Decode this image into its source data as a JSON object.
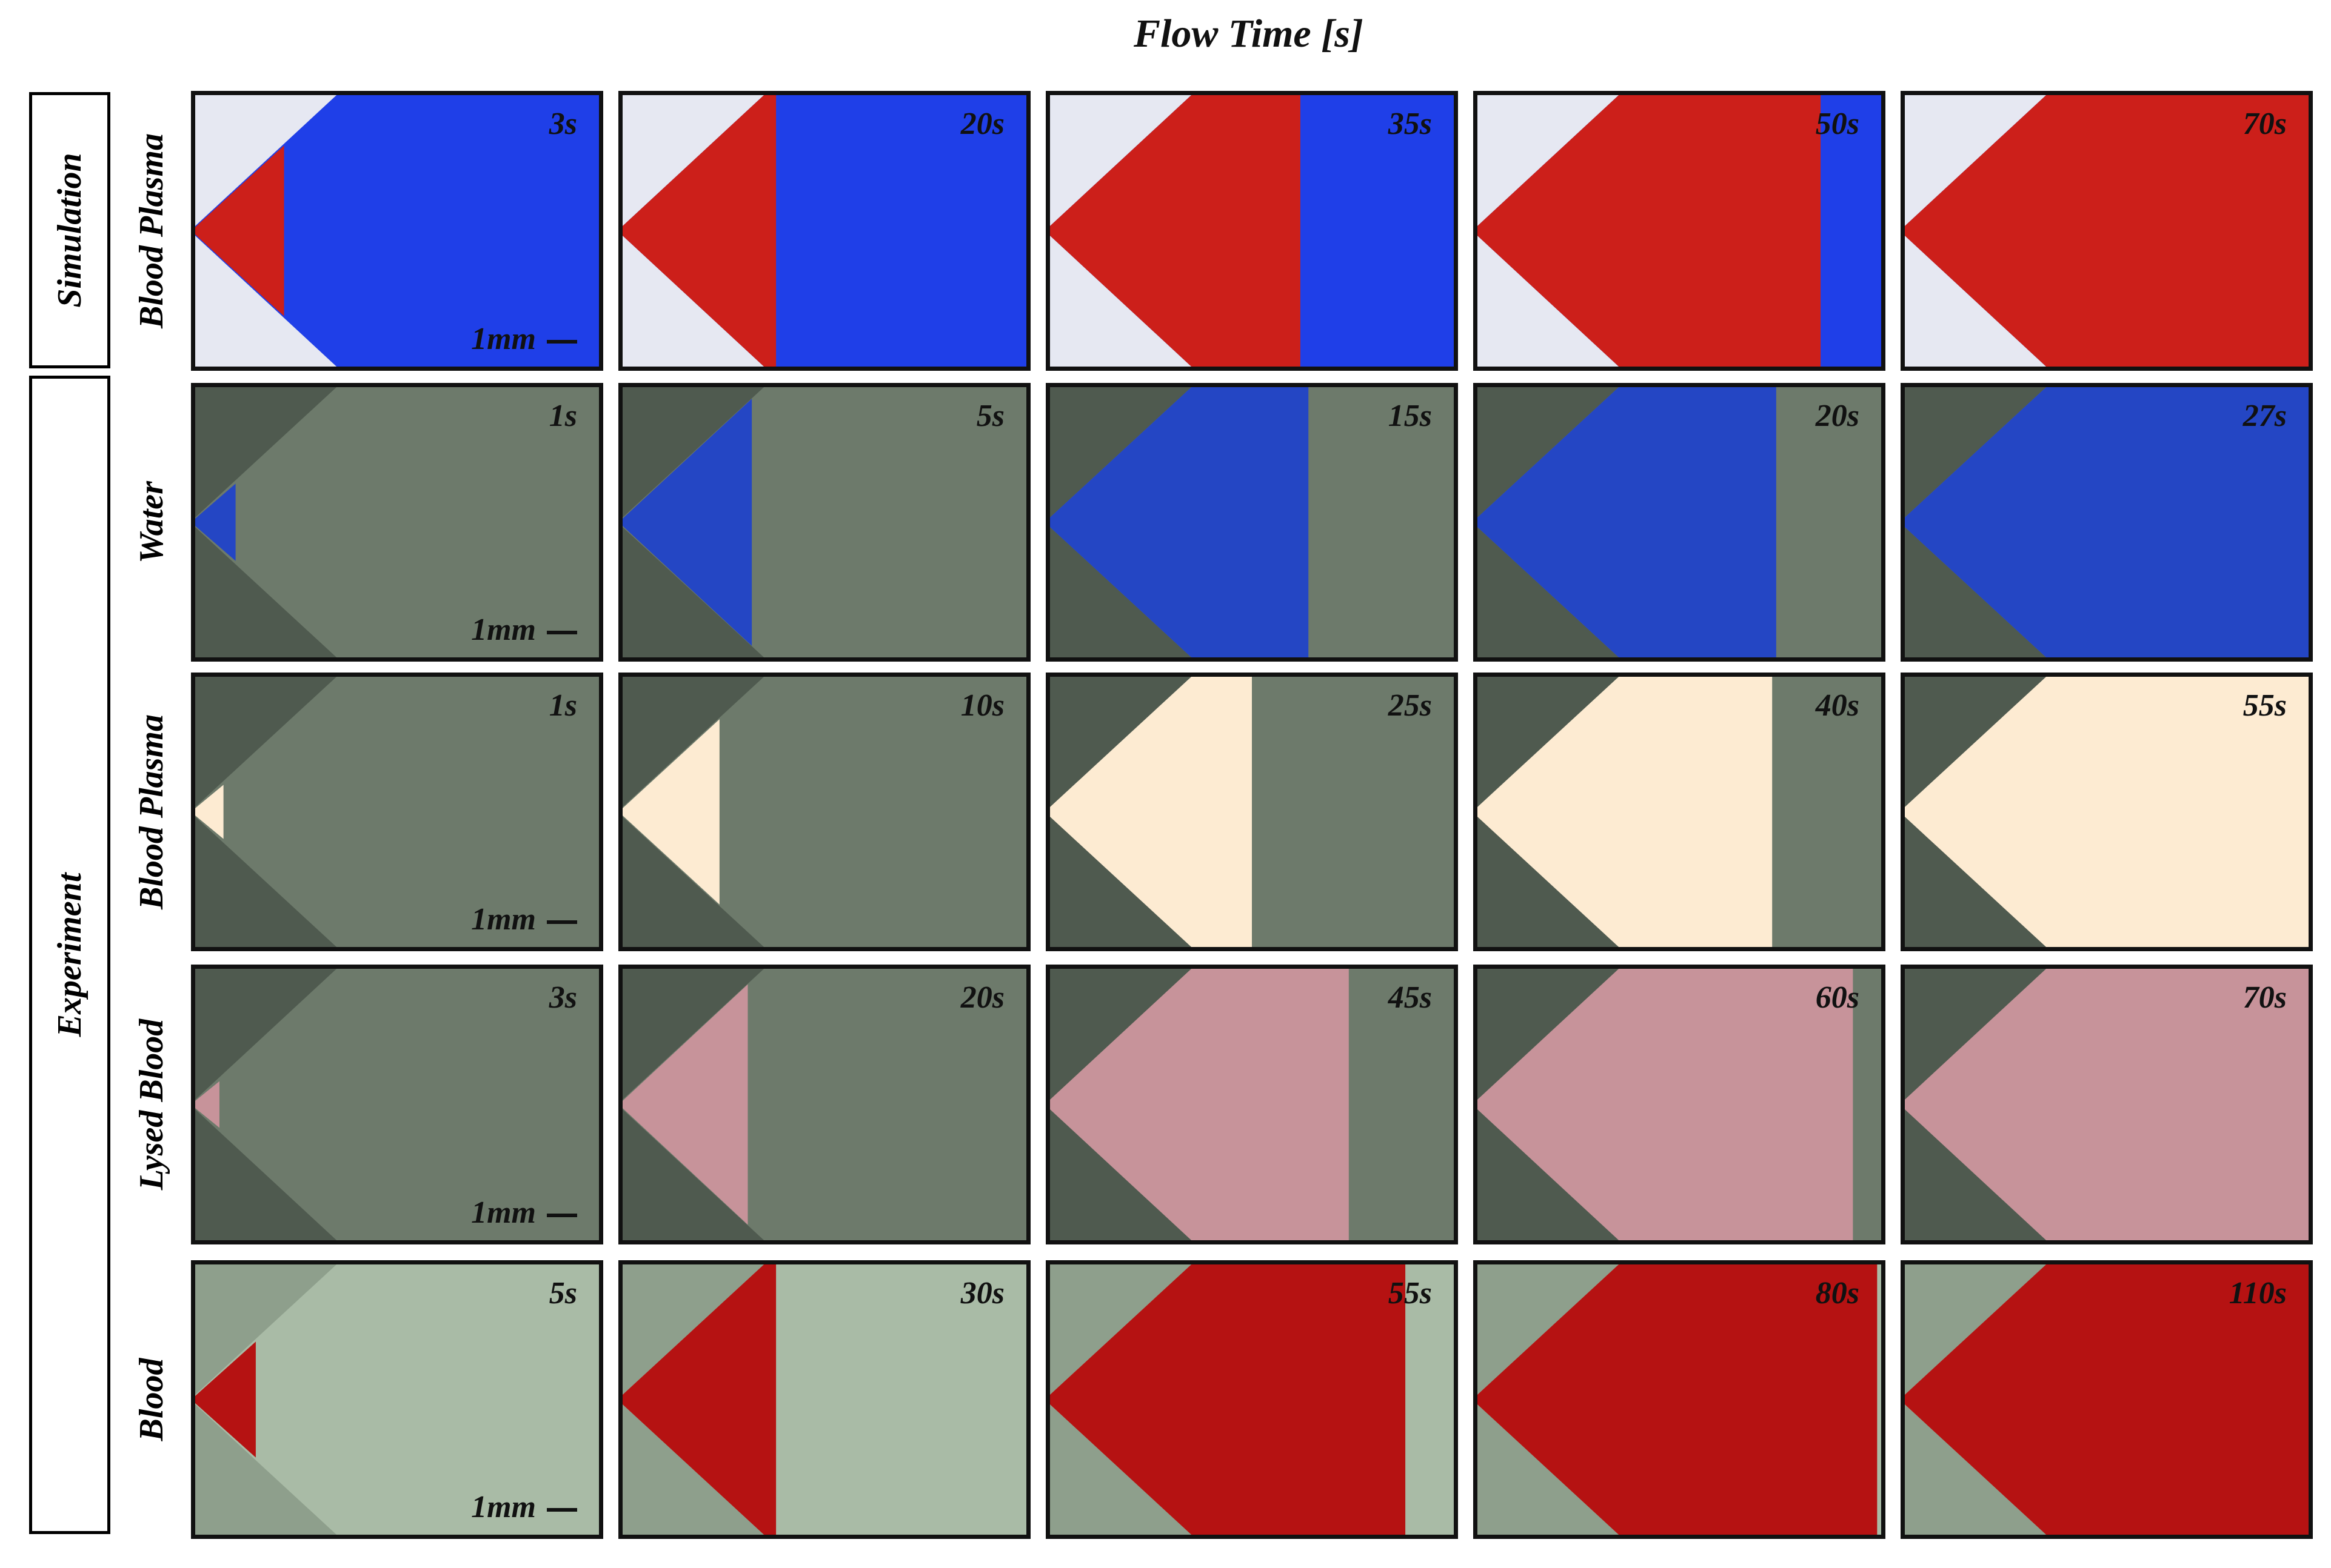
{
  "title": "Flow Time [s]",
  "groups": {
    "simulation": "Simulation",
    "experiment": "Experiment"
  },
  "scale_label": "1mm",
  "rows": [
    {
      "label": "Blood Plasma",
      "times": [
        "3s",
        "20s",
        "35s",
        "50s",
        "70s"
      ],
      "fill_color": "#cc1f1a",
      "base_color": "#1f3fe8"
    },
    {
      "label": "Water",
      "times": [
        "1s",
        "5s",
        "15s",
        "20s",
        "27s"
      ],
      "fill_color": "#2446c4"
    },
    {
      "label": "Blood Plasma",
      "times": [
        "1s",
        "10s",
        "25s",
        "40s",
        "55s"
      ],
      "fill_color": "#fdebd2"
    },
    {
      "label": "Lysed Blood",
      "times": [
        "3s",
        "20s",
        "45s",
        "60s",
        "70s"
      ],
      "fill_color": "#c7939a"
    },
    {
      "label": "Blood",
      "times": [
        "5s",
        "30s",
        "55s",
        "80s",
        "110s"
      ],
      "fill_color": "#b51212"
    }
  ]
}
